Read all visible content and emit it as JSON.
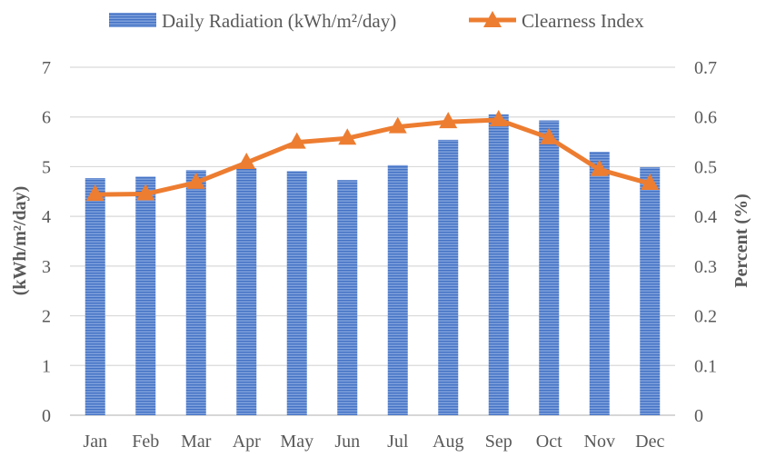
{
  "chart_data": {
    "type": "bar",
    "categories": [
      "Jan",
      "Feb",
      "Mar",
      "Apr",
      "May",
      "Jun",
      "Jul",
      "Aug",
      "Sep",
      "Oct",
      "Nov",
      "Dec"
    ],
    "series": [
      {
        "name": "Daily Radiation (kWh/m²/day)",
        "type": "bar",
        "axis": "left",
        "color": "#4472C4",
        "values": [
          4.77,
          4.8,
          4.93,
          4.97,
          4.91,
          4.73,
          5.03,
          5.54,
          6.05,
          5.93,
          5.3,
          4.99
        ]
      },
      {
        "name": "Clearness Index",
        "type": "line",
        "axis": "right",
        "color": "#ED7D31",
        "marker": "triangle",
        "values": [
          0.444,
          0.445,
          0.468,
          0.508,
          0.549,
          0.557,
          0.58,
          0.59,
          0.594,
          0.558,
          0.494,
          0.466
        ]
      }
    ],
    "ylabel": "(kWh/m²/day)",
    "ylim": [
      0,
      7
    ],
    "yticks": [
      "0",
      "1",
      "2",
      "3",
      "4",
      "5",
      "6",
      "7"
    ],
    "y2label": "Percent (%)",
    "y2lim": [
      0,
      0.7
    ],
    "y2ticks": [
      "0",
      "0.1",
      "0.2",
      "0.3",
      "0.4",
      "0.5",
      "0.6",
      "0.7"
    ],
    "grid": true,
    "legend": "top-center"
  }
}
